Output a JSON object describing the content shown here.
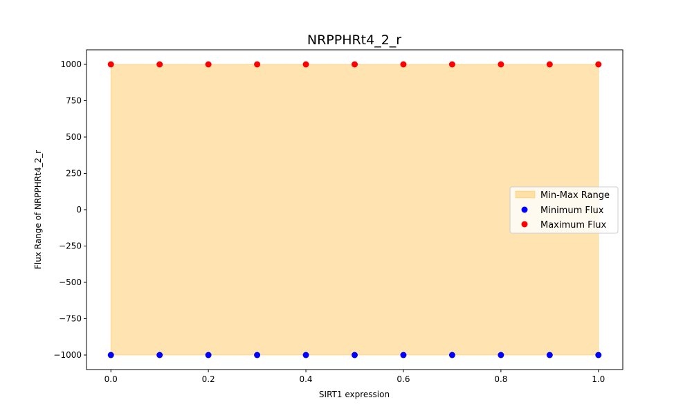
{
  "chart_data": {
    "type": "scatter",
    "title": "NRPPHRt4_2_r",
    "xlabel": "SIRT1 expression",
    "ylabel": "Flux Range of NRPPHRt4_2_r",
    "x": [
      0.0,
      0.1,
      0.2,
      0.3,
      0.4,
      0.5,
      0.6,
      0.7,
      0.8,
      0.9,
      1.0
    ],
    "series": [
      {
        "name": "Minimum Flux",
        "values": [
          -1000,
          -1000,
          -1000,
          -1000,
          -1000,
          -1000,
          -1000,
          -1000,
          -1000,
          -1000,
          -1000
        ],
        "color": "#0000ff"
      },
      {
        "name": "Maximum Flux",
        "values": [
          1000,
          1000,
          1000,
          1000,
          1000,
          1000,
          1000,
          1000,
          1000,
          1000,
          1000
        ],
        "color": "#ff0000"
      }
    ],
    "fill": {
      "name": "Min-Max Range",
      "color": "#ffa500",
      "opacity": 0.3
    },
    "xlim": [
      -0.05,
      1.05
    ],
    "ylim": [
      -1100,
      1100
    ],
    "xticks": [
      0.0,
      0.2,
      0.4,
      0.6,
      0.8,
      1.0
    ],
    "xtick_labels": [
      "0.0",
      "0.2",
      "0.4",
      "0.6",
      "0.8",
      "1.0"
    ],
    "yticks": [
      -1000,
      -750,
      -500,
      -250,
      0,
      250,
      500,
      750,
      1000
    ],
    "ytick_labels": [
      "−1000",
      "−750",
      "−500",
      "−250",
      "0",
      "250",
      "500",
      "750",
      "1000"
    ],
    "grid": false,
    "legend_position": "center-right"
  }
}
